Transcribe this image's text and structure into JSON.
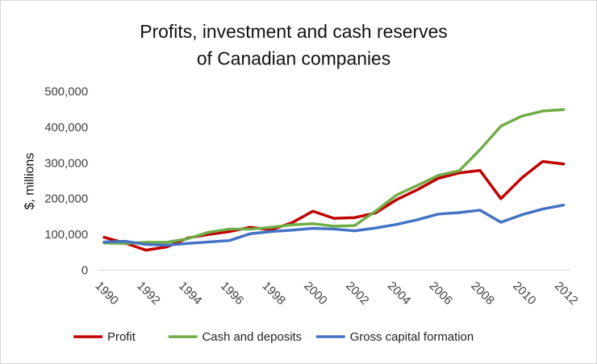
{
  "chart_data": {
    "type": "line",
    "title_lines": [
      "Profits, investment and cash reserves",
      "of Canadian companies"
    ],
    "xlabel": "",
    "ylabel": "$, millions",
    "ylim": [
      0,
      500000
    ],
    "yticks": [
      0,
      100000,
      200000,
      300000,
      400000,
      500000
    ],
    "ytick_labels": [
      "0",
      "100,000",
      "200,000",
      "300,000",
      "400,000",
      "500,000"
    ],
    "x": [
      1990,
      1991,
      1992,
      1993,
      1994,
      1995,
      1996,
      1997,
      1998,
      1999,
      2000,
      2001,
      2002,
      2003,
      2004,
      2005,
      2006,
      2007,
      2008,
      2009,
      2010,
      2011,
      2012
    ],
    "xtick_labels": [
      "1990",
      "1992",
      "1994",
      "1996",
      "1998",
      "2000",
      "2002",
      "2004",
      "2006",
      "2008",
      "2010",
      "2012"
    ],
    "grid": false,
    "legend_position": "bottom",
    "series": [
      {
        "name": "Profit",
        "color": "#c00000",
        "values": [
          92000,
          76000,
          56000,
          65000,
          90000,
          100000,
          108000,
          120000,
          113000,
          133000,
          165000,
          145000,
          147000,
          160000,
          197000,
          225000,
          257000,
          272000,
          279000,
          200000,
          258000,
          304000,
          297000
        ]
      },
      {
        "name": "Cash and deposits",
        "color": "#70ad47",
        "values": [
          76000,
          75000,
          78000,
          78000,
          88000,
          106000,
          115000,
          115000,
          120000,
          127000,
          130000,
          123000,
          125000,
          165000,
          210000,
          237000,
          265000,
          278000,
          337000,
          403000,
          431000,
          445000,
          449000
        ]
      },
      {
        "name": "Gross capital formation",
        "color": "#4472c4",
        "values": [
          79000,
          81000,
          72000,
          70000,
          75000,
          79000,
          83000,
          102000,
          108000,
          112000,
          117000,
          115000,
          110000,
          118000,
          128000,
          141000,
          157000,
          161000,
          168000,
          134000,
          155000,
          171000,
          182000
        ]
      }
    ]
  }
}
